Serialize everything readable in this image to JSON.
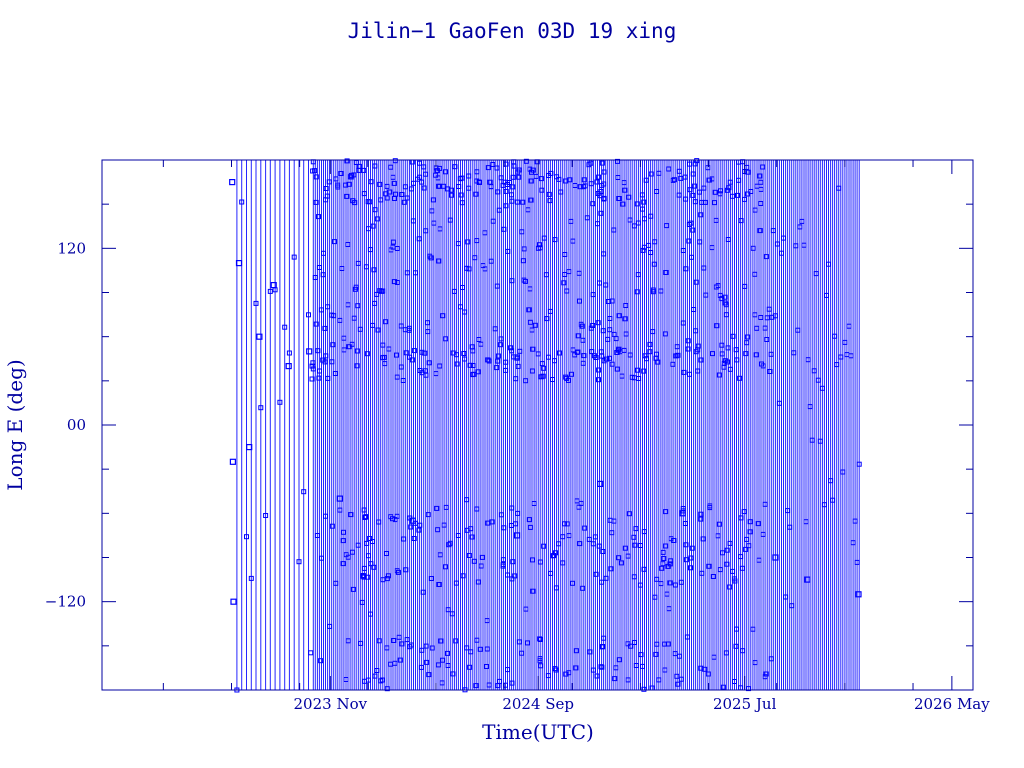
{
  "chart_data": {
    "type": "scatter",
    "title": "Jilin−1 GaoFen 03D 19 xing",
    "xlabel": "Time(UTC)",
    "ylabel": "Long E (deg)",
    "ylim": [
      -180,
      180
    ],
    "xlim": [
      "2022-12-01",
      "2026-06-01"
    ],
    "x_ticks": [
      {
        "date": "2023-11-01",
        "label": "2023 Nov"
      },
      {
        "date": "2024-09-01",
        "label": "2024 Sep"
      },
      {
        "date": "2025-07-01",
        "label": "2025 Jul"
      },
      {
        "date": "2026-05-01",
        "label": "2026 May"
      }
    ],
    "y_ticks": [
      {
        "value": 120,
        "label": "120"
      },
      {
        "value": 0,
        "label": "00"
      },
      {
        "value": -120,
        "label": "−120"
      }
    ],
    "data_range": {
      "start": "2023-06-10",
      "end": "2025-12-15"
    },
    "series": [
      {
        "color": "#0000ff",
        "marker": "square",
        "connected": true,
        "note_points": [
          {
            "x": "2023-06-10",
            "y": 165
          },
          {
            "x": "2023-06-11",
            "y": -25
          },
          {
            "x": "2023-06-12",
            "y": -120
          },
          {
            "x": "2023-06-20",
            "y": 110
          },
          {
            "x": "2023-07-05",
            "y": -15
          },
          {
            "x": "2023-07-20",
            "y": 60
          },
          {
            "x": "2023-08-10",
            "y": 95
          },
          {
            "x": "2023-09-01",
            "y": 40
          },
          {
            "x": "2023-10-01",
            "y": 50
          },
          {
            "x": "2023-11-15",
            "y": -50
          },
          {
            "x": "2024-03-01",
            "y": -65
          },
          {
            "x": "2024-08-01",
            "y": -75
          },
          {
            "x": "2024-12-01",
            "y": -40
          },
          {
            "x": "2025-04-01",
            "y": -60
          },
          {
            "x": "2025-08-15",
            "y": -90
          },
          {
            "x": "2025-10-01",
            "y": -105
          },
          {
            "x": "2025-12-15",
            "y": -115
          }
        ]
      }
    ],
    "grid": false,
    "colors": {
      "axis": "#0000a0",
      "data": "#0000ff",
      "background": "#ffffff"
    }
  }
}
